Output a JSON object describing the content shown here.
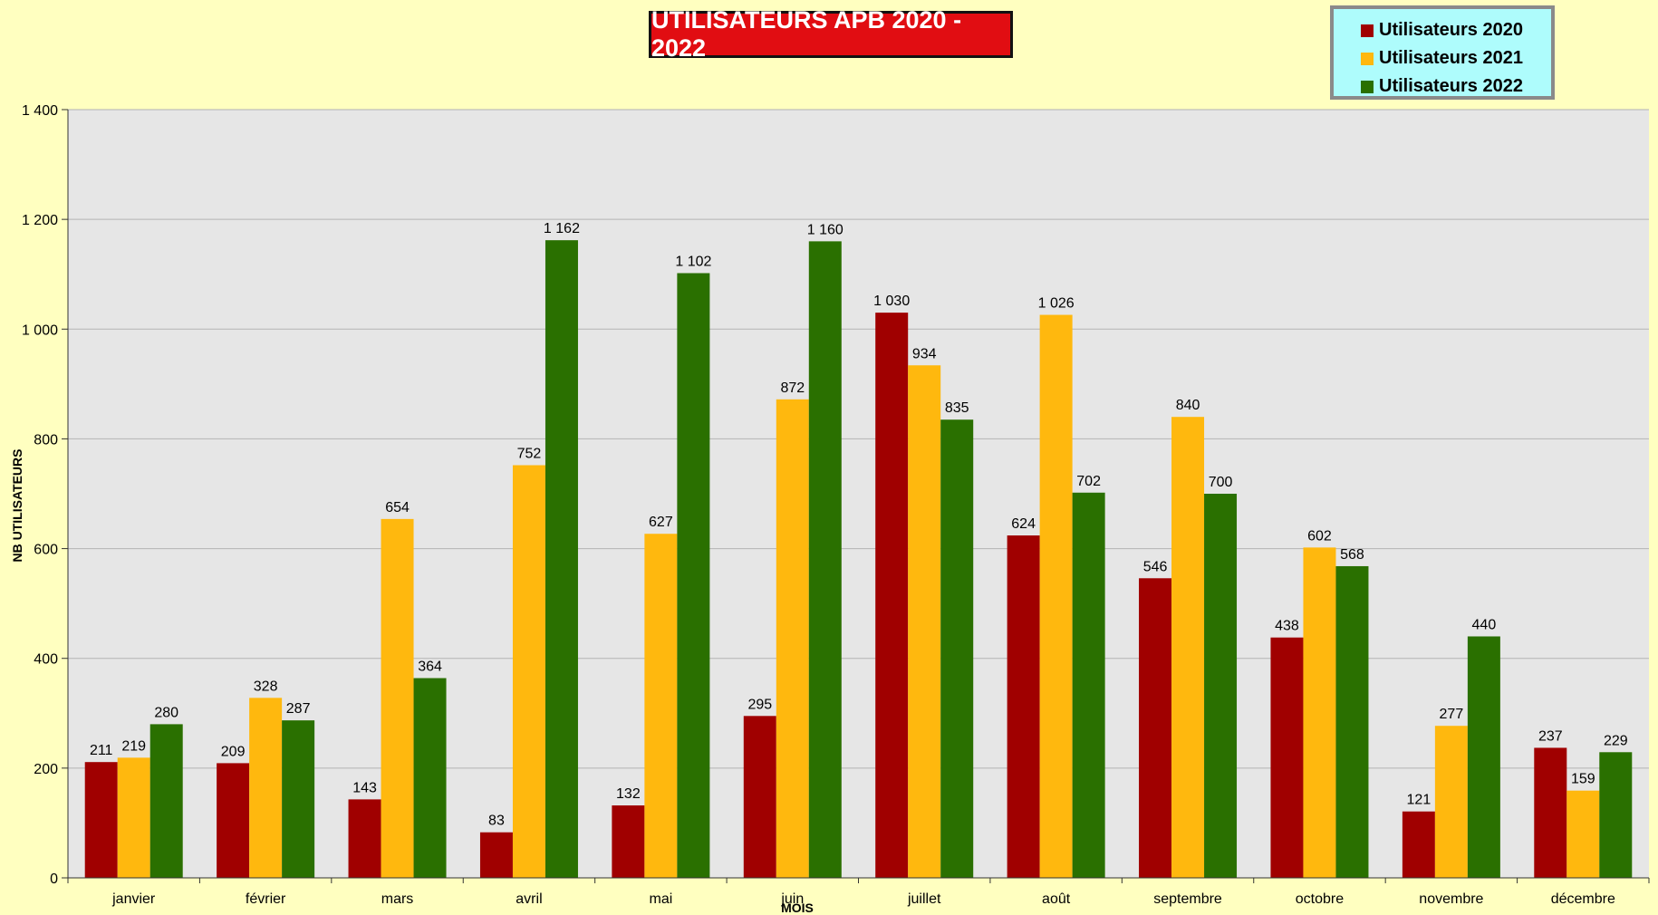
{
  "chart_data": {
    "type": "bar",
    "title": "UTILISATEURS APB 2020 - 2022",
    "xlabel": "MOIS",
    "ylabel": "NB UTILISATEURS",
    "ylim": [
      0,
      1400
    ],
    "yticks": [
      0,
      200,
      400,
      600,
      800,
      1000,
      1200,
      1400
    ],
    "ytick_labels": [
      "0",
      "200",
      "400",
      "600",
      "800",
      "1 000",
      "1 200",
      "1 400"
    ],
    "grid": true,
    "legend_position": "top-right",
    "categories": [
      "janvier",
      "février",
      "mars",
      "avril",
      "mai",
      "juin",
      "juillet",
      "août",
      "septembre",
      "octobre",
      "novembre",
      "décembre"
    ],
    "series": [
      {
        "name": "Utilisateurs 2020",
        "color": "#a00000",
        "values": [
          211,
          209,
          143,
          83,
          132,
          295,
          1030,
          624,
          546,
          438,
          121,
          237
        ],
        "labels": [
          "211",
          "209",
          "143",
          "83",
          "132",
          "295",
          "1 030",
          "624",
          "546",
          "438",
          "121",
          "237"
        ]
      },
      {
        "name": "Utilisateurs 2021",
        "color": "#ffb80e",
        "values": [
          219,
          328,
          654,
          752,
          627,
          872,
          934,
          1026,
          840,
          602,
          277,
          159
        ],
        "labels": [
          "219",
          "328",
          "654",
          "752",
          "627",
          "872",
          "934",
          "1 026",
          "840",
          "602",
          "277",
          "159"
        ]
      },
      {
        "name": "Utilisateurs 2022",
        "color": "#2a7000",
        "values": [
          280,
          287,
          364,
          1162,
          1102,
          1160,
          835,
          702,
          700,
          568,
          440,
          229
        ],
        "labels": [
          "280",
          "287",
          "364",
          "1 162",
          "1 102",
          "1 160",
          "835",
          "702",
          "700",
          "568",
          "440",
          "229"
        ]
      }
    ],
    "colors": {
      "page_background": "#ffffc0",
      "plot_background": "#e6e6e6",
      "gridline": "#b3b3b3",
      "title_background": "#e10d12",
      "legend_background": "#aefcfc"
    }
  }
}
